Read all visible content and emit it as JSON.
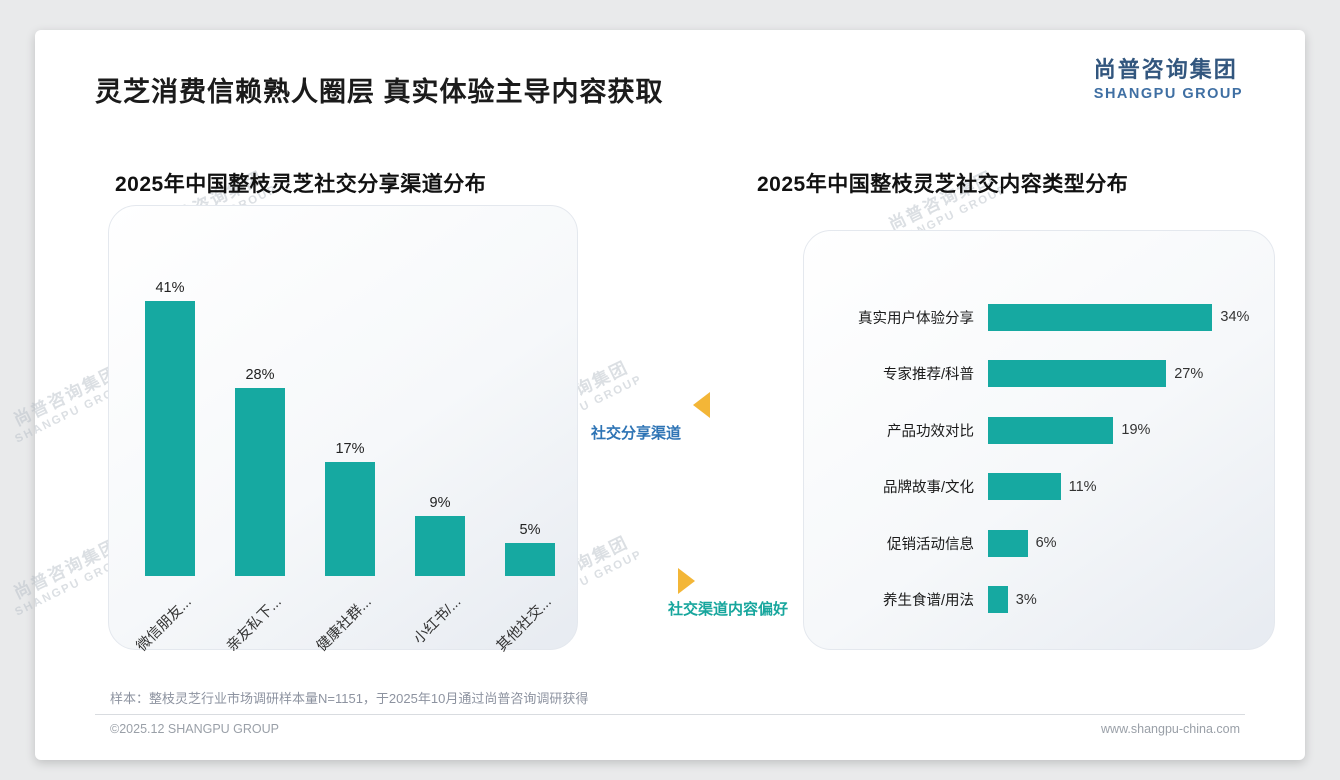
{
  "header": {
    "title": "灵芝消费信赖熟人圈层 真实体验主导内容获取",
    "logo": {
      "cn": "尚普咨询集团",
      "en": "SHANGPU GROUP"
    }
  },
  "watermark": {
    "line1": "尚普咨询集团",
    "line2": "SHANGPU GROUP"
  },
  "middle": {
    "top_label": "社交分享渠道",
    "bottom_label": "社交渠道内容偏好"
  },
  "chart_data": [
    {
      "type": "bar",
      "orientation": "vertical",
      "title": "2025年中国整枝灵芝社交分享渠道分布",
      "categories": [
        "微信朋友...",
        "亲友私下...",
        "健康社群...",
        "小红书/...",
        "其他社交..."
      ],
      "values": [
        41,
        28,
        17,
        9,
        5
      ],
      "value_labels": [
        "41%",
        "28%",
        "17%",
        "9%",
        "5%"
      ],
      "unit": "%",
      "ylim": [
        0,
        45
      ],
      "grid": false,
      "bar_color": "#16a9a1"
    },
    {
      "type": "bar",
      "orientation": "horizontal",
      "title": "2025年中国整枝灵芝社交内容类型分布",
      "categories": [
        "真实用户体验分享",
        "专家推荐/科普",
        "产品功效对比",
        "品牌故事/文化",
        "促销活动信息",
        "养生食谱/用法"
      ],
      "values": [
        34,
        27,
        19,
        11,
        6,
        3
      ],
      "value_labels": [
        "34%",
        "27%",
        "19%",
        "11%",
        "6%",
        "3%"
      ],
      "unit": "%",
      "xlim": [
        0,
        36
      ],
      "grid": false,
      "bar_color": "#16a9a1"
    }
  ],
  "footer": {
    "note": "样本：整枝灵芝行业市场调研样本量N=1151，于2025年10月通过尚普咨询调研获得",
    "copyright": "©2025.12 SHANGPU GROUP",
    "website": "www.shangpu-china.com"
  },
  "colors": {
    "accent_teal": "#16a9a1",
    "label_blue": "#2e74b5",
    "arrow_yellow": "#f3b637",
    "logo_navy": "#32567e"
  }
}
